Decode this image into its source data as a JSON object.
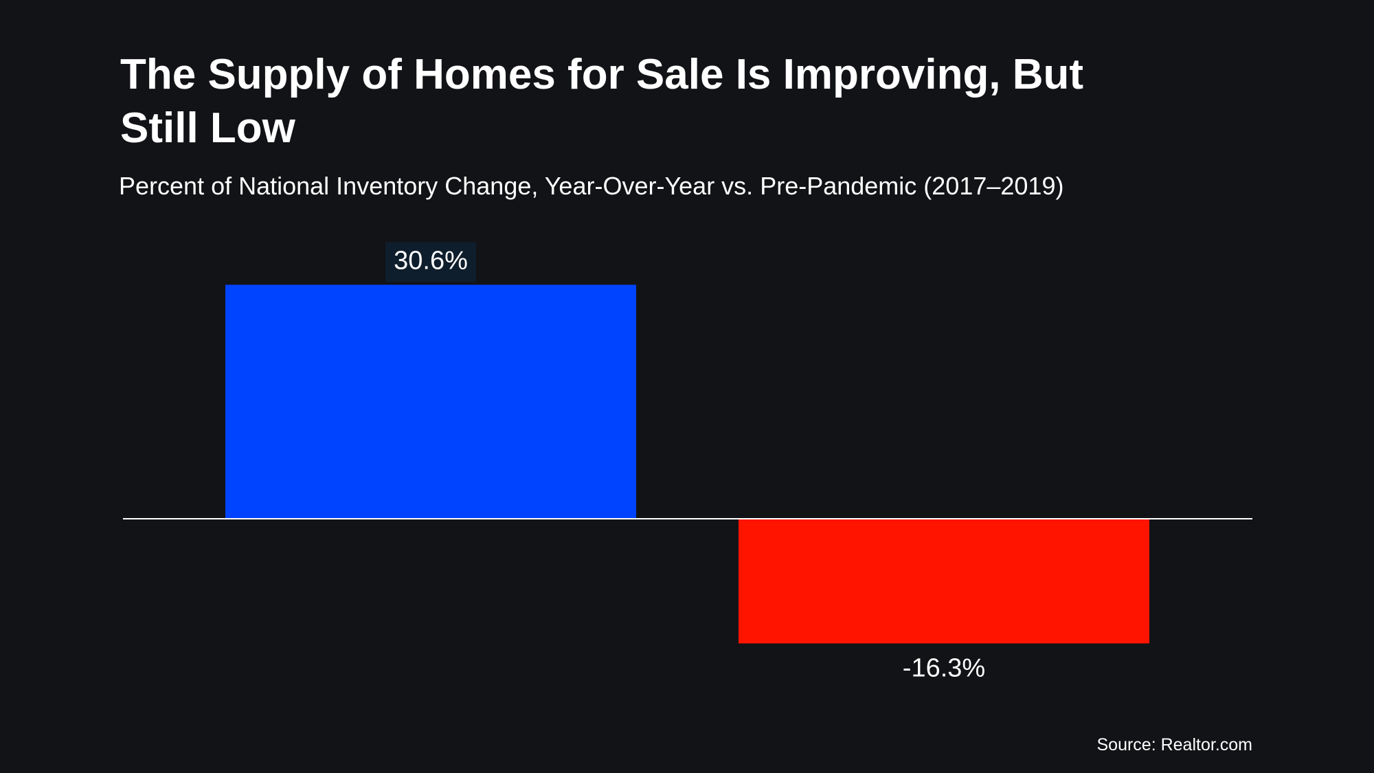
{
  "chart_data": {
    "type": "bar",
    "title": "The Supply of Homes for Sale Is Improving, But Still Low",
    "subtitle": "Percent of National Inventory Change, Year-Over-Year vs. Pre-Pandemic (2017–2019)",
    "categories": [
      null,
      null
    ],
    "values": [
      30.6,
      -16.3
    ],
    "value_labels": [
      "30.6%",
      "-16.3%"
    ],
    "colors": [
      "#0044ff",
      "#ff1400"
    ],
    "source": "Source: Realtor.com"
  }
}
